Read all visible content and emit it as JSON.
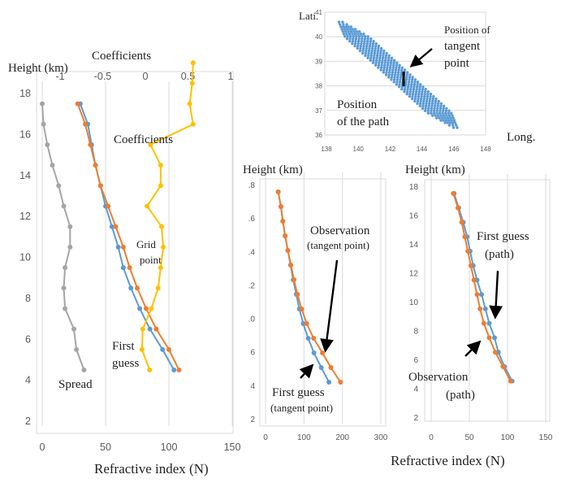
{
  "colors": {
    "blue": "#5b9bd5",
    "orange": "#ed7d31",
    "gray": "#a5a5a5",
    "yellow": "#ffc000",
    "grid": "#d9d9d9",
    "axis_text": "#595959"
  },
  "chart_data": [
    {
      "id": "left",
      "type": "line",
      "ylabel": "Height (km)",
      "xlabel": "Refractive index (N)",
      "x2label": "Coefficients",
      "ylim": [
        2,
        18
      ],
      "xlim": [
        0,
        150
      ],
      "x2lim": [
        -1,
        1
      ],
      "yticks": [
        "2",
        "4",
        "6",
        "8",
        "10",
        "12",
        "14",
        "16",
        "18"
      ],
      "xticks": [
        "0",
        "50",
        "100",
        "150"
      ],
      "x2ticks": [
        "-1",
        "-0.5",
        "0",
        "0.5",
        "1"
      ],
      "grid": "vertical",
      "annotations": [
        "Coefficients",
        "Grid",
        "point",
        "First",
        "guess",
        "Spread"
      ],
      "series": [
        {
          "color_key": "blue",
          "axis": "bottom",
          "points": [
            [
              104,
              4.5
            ],
            [
              95,
              5.5
            ],
            [
              85,
              6.5
            ],
            [
              77,
              7.5
            ],
            [
              70,
              8.5
            ],
            [
              64,
              9.5
            ],
            [
              60,
              10.5
            ],
            [
              55,
              11.5
            ],
            [
              50,
              12.5
            ],
            [
              46,
              13.5
            ],
            [
              42,
              14.5
            ],
            [
              39,
              15.5
            ],
            [
              36,
              16.5
            ],
            [
              30,
              17.5
            ]
          ]
        },
        {
          "color_key": "orange",
          "axis": "bottom",
          "points": [
            [
              108,
              4.5
            ],
            [
              100,
              5.5
            ],
            [
              90,
              6.5
            ],
            [
              82,
              7.5
            ],
            [
              75,
              8.5
            ],
            [
              69,
              9.5
            ],
            [
              64,
              10.5
            ],
            [
              58,
              11.5
            ],
            [
              52,
              12.5
            ],
            [
              46,
              13.5
            ],
            [
              42,
              14.5
            ],
            [
              38,
              15.5
            ],
            [
              34,
              16.5
            ],
            [
              28,
              17.5
            ]
          ]
        },
        {
          "color_key": "gray",
          "axis": "bottom",
          "points": [
            [
              33,
              4.5
            ],
            [
              27,
              5.5
            ],
            [
              25,
              6.5
            ],
            [
              18,
              7.5
            ],
            [
              17,
              8.5
            ],
            [
              18,
              9.5
            ],
            [
              22,
              10.5
            ],
            [
              22,
              11.5
            ],
            [
              17,
              12.5
            ],
            [
              13,
              13.5
            ],
            [
              8,
              14.5
            ],
            [
              4,
              15.5
            ],
            [
              1,
              16.5
            ],
            [
              0,
              17.5
            ]
          ]
        },
        {
          "color_key": "yellow",
          "axis": "top",
          "points": [
            [
              0.05,
              4.5
            ],
            [
              -0.04,
              5.5
            ],
            [
              -0.03,
              6.5
            ],
            [
              0.07,
              7.5
            ],
            [
              0.15,
              8.5
            ],
            [
              0.18,
              9.5
            ],
            [
              0.21,
              10.5
            ],
            [
              0.19,
              11.5
            ],
            [
              0.02,
              12.5
            ],
            [
              0.18,
              13.5
            ],
            [
              0.18,
              14.5
            ],
            [
              0.06,
              15.5
            ],
            [
              0.56,
              16.5
            ],
            [
              0.52,
              17.5
            ],
            [
              0.55,
              18.5
            ],
            [
              0.56,
              19.5
            ]
          ]
        }
      ]
    },
    {
      "id": "map",
      "type": "scatter",
      "ylabel": "Lati.",
      "xlabel": "Long.",
      "xlim": [
        138,
        148
      ],
      "ylim": [
        36,
        41
      ],
      "xticks": [
        "138",
        "140",
        "142",
        "144",
        "146",
        "148"
      ],
      "yticks": [
        "36",
        "37",
        "38",
        "39",
        "40",
        "41"
      ],
      "grid": "horizontal",
      "annotations": [
        "Position of",
        "tangent",
        "point",
        "Position",
        "of the path"
      ],
      "series": [
        {
          "color_key": "blue",
          "band_center": [
            [
              138.9,
              40.6
            ],
            [
              146.1,
              36.3
            ]
          ],
          "band_halfwidth_lon": 0.75
        }
      ]
    },
    {
      "id": "middle",
      "type": "line",
      "ylabel": "Height (km)",
      "xlim": [
        0,
        300
      ],
      "ylim": [
        2,
        18
      ],
      "yticks": [
        "2",
        "4",
        "6",
        ".0",
        ".2",
        ".4",
        ".6",
        ".8"
      ],
      "xticks": [
        "0",
        "100",
        "200",
        "300"
      ],
      "grid": "vertical",
      "annotations": [
        "Observation",
        "(tangent point)",
        "First guess",
        "(tangent point)"
      ],
      "series": [
        {
          "color_key": "blue",
          "points": [
            [
              165,
              4.5
            ],
            [
              145,
              5.5
            ],
            [
              126,
              6.5
            ],
            [
              111,
              7.5
            ],
            [
              98,
              8.5
            ],
            [
              88,
              9.5
            ],
            [
              80,
              10.5
            ],
            [
              72,
              11.5
            ],
            [
              65,
              12.5
            ],
            [
              58,
              13.5
            ],
            [
              51,
              14.5
            ],
            [
              45,
              15.5
            ],
            [
              40,
              16.5
            ],
            [
              33,
              17.5
            ]
          ]
        },
        {
          "color_key": "orange",
          "points": [
            [
              195,
              4.5
            ],
            [
              170,
              5.5
            ],
            [
              148,
              6.5
            ],
            [
              125,
              7.5
            ],
            [
              107,
              8.5
            ],
            [
              94,
              9.5
            ],
            [
              83,
              10.5
            ],
            [
              74,
              11.5
            ],
            [
              66,
              12.5
            ],
            [
              58,
              13.5
            ],
            [
              51,
              14.5
            ],
            [
              45,
              15.5
            ],
            [
              40,
              16.5
            ],
            [
              33,
              17.5
            ]
          ]
        }
      ]
    },
    {
      "id": "right",
      "type": "line",
      "ylabel": "Height (km)",
      "xlabel": "Refractive index (N)",
      "xlim": [
        0,
        150
      ],
      "ylim": [
        2,
        18
      ],
      "yticks": [
        "2",
        "4",
        "6",
        "8",
        "10",
        "12",
        "14",
        "16",
        "18"
      ],
      "xticks": [
        "0",
        "50",
        "100",
        "150"
      ],
      "grid": "vertical",
      "annotations": [
        "First guess",
        "(path)",
        "Observation",
        "(path)"
      ],
      "series": [
        {
          "color_key": "blue",
          "points": [
            [
              106,
              4.5
            ],
            [
              96,
              5.5
            ],
            [
              88,
              6.5
            ],
            [
              83,
              7.5
            ],
            [
              76,
              8.5
            ],
            [
              71,
              9.5
            ],
            [
              66,
              10.5
            ],
            [
              60,
              11.5
            ],
            [
              55,
              12.5
            ],
            [
              51,
              13.5
            ],
            [
              47,
              14.5
            ],
            [
              42,
              15.5
            ],
            [
              36,
              16.5
            ],
            [
              30,
              17.5
            ]
          ]
        },
        {
          "color_key": "orange",
          "points": [
            [
              104,
              4.5
            ],
            [
              94,
              5.5
            ],
            [
              84,
              6.5
            ],
            [
              76,
              7.5
            ],
            [
              69,
              8.5
            ],
            [
              64,
              9.5
            ],
            [
              60,
              10.5
            ],
            [
              56,
              11.5
            ],
            [
              52,
              12.5
            ],
            [
              48,
              13.5
            ],
            [
              44,
              14.5
            ],
            [
              40,
              15.5
            ],
            [
              35,
              16.5
            ],
            [
              29,
              17.5
            ]
          ]
        }
      ]
    }
  ]
}
